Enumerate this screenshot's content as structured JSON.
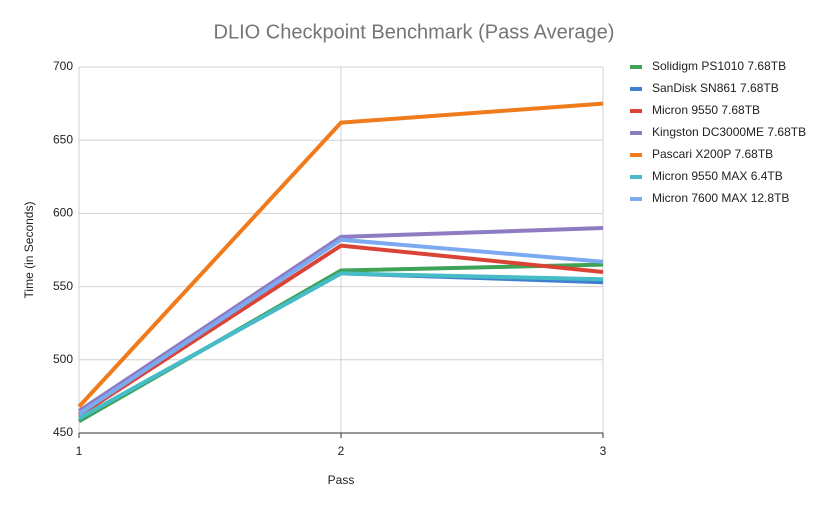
{
  "chart_data": {
    "type": "line",
    "title": "DLIO Checkpoint Benchmark (Pass Average)",
    "x_label": "Pass",
    "y_label": "Time (in Seconds)",
    "x": [
      1,
      2,
      3
    ],
    "xlim": [
      1,
      3
    ],
    "xticks": [
      1,
      2,
      3
    ],
    "ylim": [
      450,
      700
    ],
    "yticks": [
      450,
      500,
      550,
      600,
      650,
      700
    ],
    "grid": true,
    "legend": "right",
    "series": [
      {
        "name": "Solidigm PS1010 7.68TB",
        "color": "#3ea257",
        "values": [
          458,
          561,
          565
        ]
      },
      {
        "name": "SanDisk SN861 7.68TB",
        "color": "#3f7fcf",
        "values": [
          460,
          559,
          553
        ]
      },
      {
        "name": "Micron 9550 7.68TB",
        "color": "#d94436",
        "values": [
          462,
          578,
          560
        ]
      },
      {
        "name": "Kingston DC3000ME 7.68TB",
        "color": "#8e7cc3",
        "values": [
          465,
          584,
          590
        ]
      },
      {
        "name": "Pascari X200P 7.68TB",
        "color": "#f07b1c",
        "values": [
          468,
          662,
          675
        ]
      },
      {
        "name": "Micron 9550 MAX 6.4TB",
        "color": "#46bdc6",
        "values": [
          460,
          559,
          555
        ]
      },
      {
        "name": "Micron 7600 MAX 12.8TB",
        "color": "#7baaf0",
        "values": [
          463,
          582,
          567
        ]
      }
    ]
  }
}
